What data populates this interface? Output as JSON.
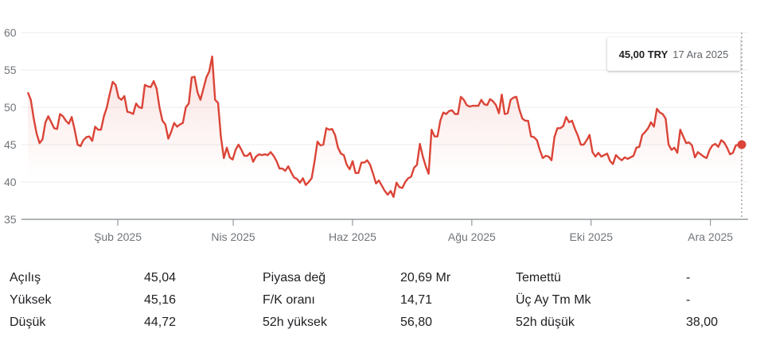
{
  "chart_data": {
    "type": "line",
    "title": "",
    "start_date": "2024-12-17",
    "end_date": "2025-12-17",
    "ylim": [
      35,
      60
    ],
    "y_ticks": [
      35,
      40,
      45,
      50,
      55,
      60
    ],
    "x_ticks": [
      {
        "label": "Şub 2025",
        "date": "2025-02-01"
      },
      {
        "label": "Nis 2025",
        "date": "2025-04-01"
      },
      {
        "label": "Haz 2025",
        "date": "2025-06-01"
      },
      {
        "label": "Ağu 2025",
        "date": "2025-08-01"
      },
      {
        "label": "Eki 2025",
        "date": "2025-10-01"
      },
      {
        "label": "Ara 2025",
        "date": "2025-12-01"
      }
    ],
    "grid": true,
    "color": "#db4437",
    "values": [
      52,
      51,
      48.5,
      46.5,
      45.2,
      45.7,
      48,
      48.8,
      48,
      47.2,
      47.1,
      49.1,
      48.8,
      48.2,
      47.8,
      48.7,
      47,
      45,
      44.8,
      45.6,
      46,
      46.1,
      45.5,
      47.4,
      47,
      47,
      48.8,
      50,
      51.8,
      53.4,
      53,
      51.3,
      51,
      51.5,
      49.4,
      49.3,
      49.1,
      50.5,
      50,
      49.9,
      53,
      52.8,
      52.7,
      53.5,
      52.5,
      50,
      48.2,
      47.7,
      45.8,
      46.7,
      47.9,
      47.4,
      47.7,
      47.9,
      50,
      50.5,
      54,
      54.1,
      52,
      51,
      52.5,
      54,
      54.8,
      56.8,
      51,
      50.6,
      46,
      43.2,
      44.6,
      43.3,
      43,
      44.3,
      45,
      44.3,
      43.5,
      43.5,
      43.9,
      42.7,
      43.4,
      43.7,
      43.6,
      43.7,
      43.6,
      44,
      43.5,
      42.8,
      41.8,
      41.8,
      41.5,
      42.1,
      41.3,
      40.6,
      40.4,
      39.9,
      40.5,
      39.6,
      40,
      40.5,
      42.8,
      45.4,
      44.9,
      45,
      47.2,
      47,
      47.1,
      46.3,
      44.6,
      43.8,
      43.6,
      42.3,
      41.7,
      42.8,
      41.2,
      41.2,
      42.6,
      42.6,
      42.9,
      42.3,
      41.1,
      39.8,
      40.2,
      39.5,
      38.8,
      38.3,
      38.8,
      38,
      39.9,
      39.3,
      39.2,
      40,
      40.5,
      40.7,
      41.9,
      42.3,
      45.1,
      43.4,
      42.1,
      41.1,
      47,
      46.1,
      46.1,
      48.2,
      49.3,
      49.1,
      49.5,
      49.6,
      49.1,
      49.1,
      51.4,
      51,
      50.3,
      50.1,
      50.2,
      50.2,
      50.2,
      51,
      50.4,
      50.3,
      51.1,
      50.8,
      50.3,
      49.2,
      51.7,
      49.1,
      49.2,
      51,
      51.3,
      51.4,
      49.7,
      48.5,
      48.2,
      48.2,
      46.1,
      46,
      45.6,
      44.3,
      43.2,
      43.5,
      43.4,
      42.9,
      46,
      47.2,
      47.2,
      47.5,
      48.7,
      48,
      48.2,
      47.1,
      46.2,
      45,
      45,
      45.6,
      46.3,
      44,
      43.4,
      43.9,
      43.4,
      43.6,
      43.8,
      42.8,
      42.4,
      43.6,
      43.2,
      42.9,
      43.3,
      43.1,
      43.3,
      43.5,
      44.6,
      44.7,
      46.3,
      46.7,
      47.2,
      48,
      47.4,
      49.8,
      49.3,
      49.1,
      48.5,
      45,
      44.3,
      44.6,
      43.9,
      47,
      46.1,
      45.2,
      45.3,
      44.9,
      43.3,
      44,
      43.7,
      43.4,
      43.2,
      44.3,
      44.9,
      45.1,
      44.7,
      45.6,
      45.3,
      44.6,
      43.7,
      43.9,
      44.9,
      45,
      45
    ]
  },
  "tooltip": {
    "price": "45,00 TRY",
    "date": "17 Ara 2025"
  },
  "stats": [
    [
      {
        "label": "Açılış",
        "value": "45,04"
      },
      {
        "label": "Piyasa değ",
        "value": "20,69 Mr"
      },
      {
        "label": "Temettü",
        "value": "-"
      }
    ],
    [
      {
        "label": "Yüksek",
        "value": "45,16"
      },
      {
        "label": "F/K oranı",
        "value": "14,71"
      },
      {
        "label": "Üç Ay Tm Mk",
        "value": "-"
      }
    ],
    [
      {
        "label": "Düşük",
        "value": "44,72"
      },
      {
        "label": "52h yüksek",
        "value": "56,80"
      },
      {
        "label": "52h düşük",
        "value": "38,00"
      }
    ]
  ]
}
